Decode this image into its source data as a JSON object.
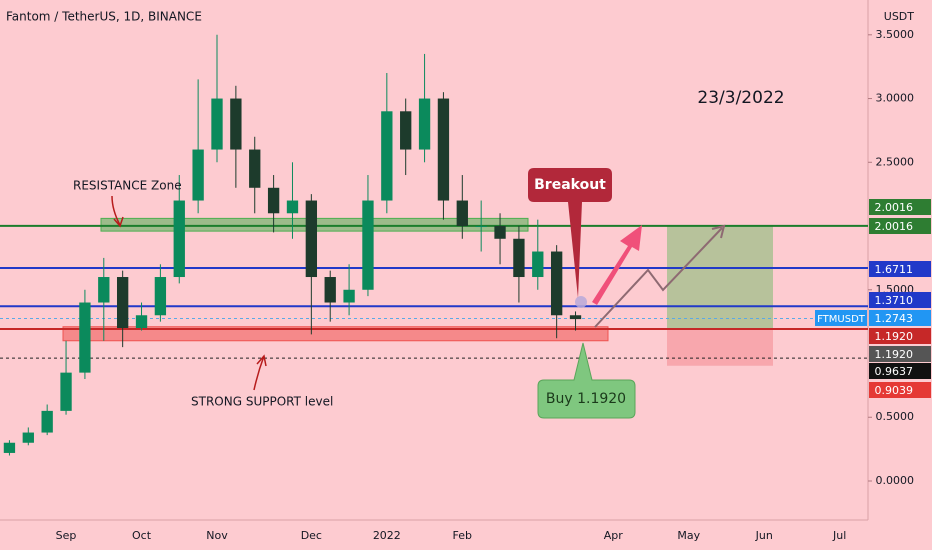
{
  "chart_data": {
    "type": "candlestick",
    "title": "Fantom / TetherUS, 1D, BINANCE",
    "currency": "USDT",
    "date_note": "23/3/2022",
    "categories": [
      null,
      null,
      null,
      "Sep",
      null,
      null,
      null,
      "Oct",
      null,
      null,
      null,
      "Nov",
      null,
      null,
      null,
      null,
      "Dec",
      null,
      null,
      null,
      "2022",
      null,
      null,
      null,
      "Feb",
      null,
      null,
      null,
      null,
      null,
      null,
      null,
      "Apr",
      null,
      null,
      null,
      "May",
      null,
      null,
      null,
      "Jun",
      null,
      null,
      null,
      "Jul",
      null
    ],
    "open": [
      0.22,
      0.3,
      0.38,
      0.55,
      0.85,
      1.4,
      1.6,
      1.2,
      1.3,
      1.6,
      2.2,
      2.6,
      3.0,
      2.6,
      2.3,
      2.1,
      2.2,
      1.6,
      1.4,
      1.5,
      2.2,
      2.9,
      2.6,
      3.0,
      2.2,
      2.0,
      2.0,
      1.9,
      1.6,
      1.8,
      1.3,
      null,
      null,
      null,
      null,
      null,
      null,
      null,
      null,
      null,
      null,
      null,
      null,
      null,
      null,
      null
    ],
    "high": [
      0.32,
      0.42,
      0.6,
      1.1,
      1.5,
      1.75,
      1.65,
      1.4,
      1.7,
      2.4,
      3.15,
      3.5,
      3.1,
      2.7,
      2.4,
      2.5,
      2.25,
      1.65,
      1.7,
      2.4,
      3.2,
      3.0,
      3.35,
      3.05,
      2.4,
      2.2,
      2.1,
      2.0,
      2.05,
      1.85,
      1.33,
      null,
      null,
      null,
      null,
      null,
      null,
      null,
      null,
      null,
      null,
      null,
      null,
      null,
      null,
      null
    ],
    "low": [
      0.2,
      0.28,
      0.36,
      0.52,
      0.8,
      1.1,
      1.05,
      1.18,
      1.25,
      1.55,
      2.1,
      2.5,
      2.3,
      2.1,
      1.95,
      1.9,
      1.15,
      1.25,
      1.3,
      1.45,
      2.1,
      2.4,
      2.5,
      2.05,
      1.9,
      1.8,
      1.7,
      1.4,
      1.5,
      1.12,
      1.18,
      null,
      null,
      null,
      null,
      null,
      null,
      null,
      null,
      null,
      null,
      null,
      null,
      null,
      null,
      null
    ],
    "close": [
      0.3,
      0.38,
      0.55,
      0.85,
      1.4,
      1.6,
      1.2,
      1.3,
      1.6,
      2.2,
      2.6,
      3.0,
      2.6,
      2.3,
      2.1,
      2.2,
      1.6,
      1.4,
      1.5,
      2.2,
      2.9,
      2.6,
      3.0,
      2.2,
      2.0,
      2.0,
      1.9,
      1.6,
      1.8,
      1.3,
      1.27,
      null,
      null,
      null,
      null,
      null,
      null,
      null,
      null,
      null,
      null,
      null,
      null,
      null,
      null,
      null
    ],
    "up_color": "#0b8a5c",
    "down_color": "#1d3b2c",
    "ylim": [
      -0.306,
      3.773
    ],
    "yticks": [
      {
        "value": 3.5,
        "label": "3.5000"
      },
      {
        "value": 3,
        "label": "3.0000"
      },
      {
        "value": 2.5,
        "label": "2.5000"
      },
      {
        "value": 1.5,
        "label": "1.5000"
      },
      {
        "value": 0.5,
        "label": "0.5000"
      },
      {
        "value": 0,
        "label": "0.0000"
      }
    ],
    "levels": [
      {
        "value": 2.0016,
        "color": "#1b7d2b"
      },
      {
        "value": 1.6711,
        "color": "#2139c9"
      },
      {
        "value": 1.371,
        "color": "#2139c9"
      },
      {
        "value": 1.2743,
        "color": "#5aa9e6",
        "dotted": true
      },
      {
        "value": 1.192,
        "color": "#c62828"
      },
      {
        "value": 0.9637,
        "color": "#222222",
        "dotted": true
      }
    ],
    "price_tags": [
      {
        "value": 2.0016,
        "color": "#2e7d32"
      },
      {
        "value": 2.0016,
        "color": "#2e7d32"
      },
      {
        "value": 1.6711,
        "color": "#2139c9"
      },
      {
        "value": 1.371,
        "label": "1.3710",
        "color": "#2139c9"
      },
      {
        "value": 1.2743,
        "color": "#2196f3",
        "symbol": "FTMUSDT"
      },
      {
        "value": 1.192,
        "label": "1.1920",
        "color": "#c62828"
      },
      {
        "value": 1.192,
        "label": "1.1920",
        "color": "#555555"
      },
      {
        "value": 0.9637,
        "color": "#111111"
      },
      {
        "value": 0.9039,
        "color": "#e53935"
      }
    ],
    "zones": [
      {
        "name": "RESISTANCE Zone",
        "top": 2.06,
        "bottom": 1.96,
        "color": "#4caf50"
      },
      {
        "name": "STRONG SUPPORT level",
        "top": 1.21,
        "bottom": 1.1,
        "color": "#ef5350"
      }
    ],
    "position": {
      "target": 2.0016,
      "entry": 1.192,
      "stop": 0.9039
    },
    "breakout": "Breakout",
    "buy": "Buy 1.1920"
  }
}
